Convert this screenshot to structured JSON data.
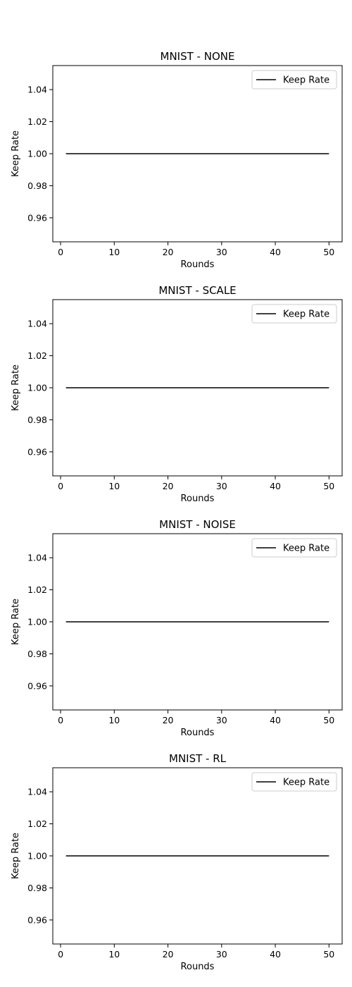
{
  "chart_data": [
    {
      "type": "line",
      "title": "MNIST - NONE",
      "xlabel": "Rounds",
      "ylabel": "Keep Rate",
      "xlim": [
        -1.45,
        52.45
      ],
      "ylim": [
        0.945,
        1.055
      ],
      "xticks": [
        0,
        10,
        20,
        30,
        40,
        50
      ],
      "yticks": [
        0.96,
        0.98,
        1.0,
        1.02,
        1.04
      ],
      "ytick_labels": [
        "0.96",
        "0.98",
        "1.00",
        "1.02",
        "1.04"
      ],
      "grid": false,
      "legend_position": "top-right",
      "series": [
        {
          "name": "Keep Rate",
          "color": "#000000",
          "x": [
            1,
            50
          ],
          "y": [
            1.0,
            1.0
          ]
        }
      ]
    },
    {
      "type": "line",
      "title": "MNIST - SCALE",
      "xlabel": "Rounds",
      "ylabel": "Keep Rate",
      "xlim": [
        -1.45,
        52.45
      ],
      "ylim": [
        0.945,
        1.055
      ],
      "xticks": [
        0,
        10,
        20,
        30,
        40,
        50
      ],
      "yticks": [
        0.96,
        0.98,
        1.0,
        1.02,
        1.04
      ],
      "ytick_labels": [
        "0.96",
        "0.98",
        "1.00",
        "1.02",
        "1.04"
      ],
      "grid": false,
      "legend_position": "top-right",
      "series": [
        {
          "name": "Keep Rate",
          "color": "#000000",
          "x": [
            1,
            50
          ],
          "y": [
            1.0,
            1.0
          ]
        }
      ]
    },
    {
      "type": "line",
      "title": "MNIST - NOISE",
      "xlabel": "Rounds",
      "ylabel": "Keep Rate",
      "xlim": [
        -1.45,
        52.45
      ],
      "ylim": [
        0.945,
        1.055
      ],
      "xticks": [
        0,
        10,
        20,
        30,
        40,
        50
      ],
      "yticks": [
        0.96,
        0.98,
        1.0,
        1.02,
        1.04
      ],
      "ytick_labels": [
        "0.96",
        "0.98",
        "1.00",
        "1.02",
        "1.04"
      ],
      "grid": false,
      "legend_position": "top-right",
      "series": [
        {
          "name": "Keep Rate",
          "color": "#000000",
          "x": [
            1,
            50
          ],
          "y": [
            1.0,
            1.0
          ]
        }
      ]
    },
    {
      "type": "line",
      "title": "MNIST - RL",
      "xlabel": "Rounds",
      "ylabel": "Keep Rate",
      "xlim": [
        -1.45,
        52.45
      ],
      "ylim": [
        0.945,
        1.055
      ],
      "xticks": [
        0,
        10,
        20,
        30,
        40,
        50
      ],
      "yticks": [
        0.96,
        0.98,
        1.0,
        1.02,
        1.04
      ],
      "ytick_labels": [
        "0.96",
        "0.98",
        "1.00",
        "1.02",
        "1.04"
      ],
      "grid": false,
      "legend_position": "top-right",
      "series": [
        {
          "name": "Keep Rate",
          "color": "#000000",
          "x": [
            1,
            50
          ],
          "y": [
            1.0,
            1.0
          ]
        }
      ]
    }
  ]
}
